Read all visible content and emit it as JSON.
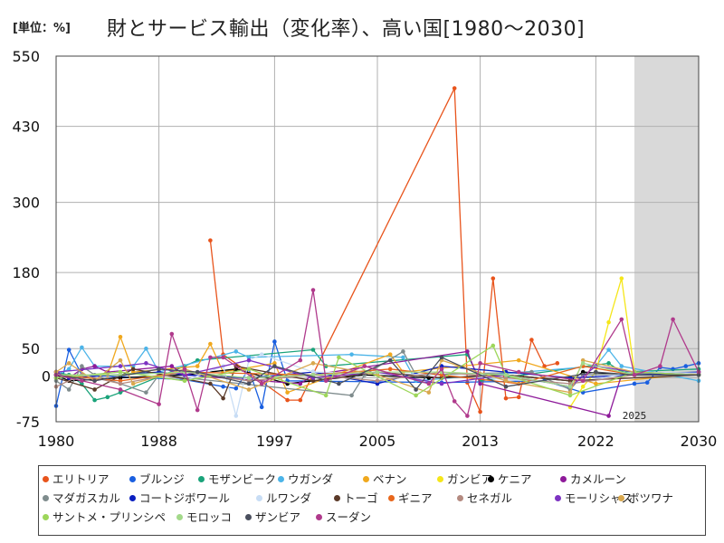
{
  "unit_label": "[単位：%]",
  "title": "財とサービス輸出（変化率）、高い国[1980～2030]",
  "chart_data": {
    "type": "line",
    "title": "財とサービス輸出（変化率）、高い国[1980～2030]",
    "xlabel": "",
    "ylabel": "",
    "xlim": [
      1980,
      2030
    ],
    "ylim": [
      -75,
      550
    ],
    "x_ticks": [
      1980,
      1988,
      1997,
      2005,
      2013,
      2022,
      2030
    ],
    "y_ticks": [
      550,
      430,
      300,
      180,
      50,
      0,
      -75
    ],
    "forecast_start": 2025,
    "forecast_label": "2025",
    "grid": true,
    "legend_position": "bottom",
    "series": [
      {
        "name": "エリトリア",
        "color": "#e8541c",
        "points": [
          [
            1992,
            235
          ],
          [
            1993,
            40
          ],
          [
            1998,
            -38
          ],
          [
            1999,
            -38
          ],
          [
            2011,
            495
          ],
          [
            2012,
            -8
          ],
          [
            2013,
            -58
          ],
          [
            2014,
            170
          ],
          [
            2015,
            -35
          ],
          [
            2016,
            -33
          ],
          [
            2017,
            65
          ],
          [
            2018,
            20
          ],
          [
            2019,
            25
          ]
        ]
      },
      {
        "name": "ブルンジ",
        "color": "#1a5fe0",
        "points": [
          [
            1980,
            -48
          ],
          [
            1981,
            48
          ],
          [
            1982,
            5
          ],
          [
            1990,
            -3
          ],
          [
            1993,
            -15
          ],
          [
            1994,
            -18
          ],
          [
            1995,
            15
          ],
          [
            1996,
            -50
          ],
          [
            1997,
            62
          ],
          [
            1998,
            -5
          ],
          [
            2010,
            -8
          ],
          [
            2018,
            -5
          ],
          [
            2021,
            -25
          ],
          [
            2025,
            -10
          ],
          [
            2026,
            -8
          ],
          [
            2027,
            18
          ],
          [
            2028,
            15
          ],
          [
            2029,
            20
          ],
          [
            2030,
            25
          ]
        ]
      },
      {
        "name": "モザンビーク",
        "color": "#1aa37a",
        "points": [
          [
            1980,
            10
          ],
          [
            1981,
            5
          ],
          [
            1982,
            -10
          ],
          [
            1983,
            -38
          ],
          [
            1984,
            -33
          ],
          [
            1985,
            -25
          ],
          [
            1990,
            20
          ],
          [
            1991,
            30
          ],
          [
            2000,
            48
          ],
          [
            2001,
            20
          ],
          [
            2012,
            40
          ],
          [
            2013,
            -5
          ],
          [
            2023,
            25
          ],
          [
            2024,
            10
          ],
          [
            2030,
            15
          ]
        ]
      },
      {
        "name": "ウガンダ",
        "color": "#4cb4e8",
        "points": [
          [
            1980,
            5
          ],
          [
            1981,
            15
          ],
          [
            1982,
            52
          ],
          [
            1983,
            20
          ],
          [
            1986,
            20
          ],
          [
            1987,
            50
          ],
          [
            1988,
            10
          ],
          [
            1994,
            45
          ],
          [
            1995,
            35
          ],
          [
            2003,
            40
          ],
          [
            2007,
            35
          ],
          [
            2008,
            -5
          ],
          [
            2022,
            20
          ],
          [
            2023,
            48
          ],
          [
            2024,
            20
          ],
          [
            2030,
            -5
          ]
        ]
      },
      {
        "name": "ベナン",
        "color": "#f0a81e",
        "points": [
          [
            1980,
            5
          ],
          [
            1984,
            5
          ],
          [
            1985,
            70
          ],
          [
            1986,
            10
          ],
          [
            1991,
            20
          ],
          [
            1992,
            58
          ],
          [
            1993,
            10
          ],
          [
            1997,
            25
          ],
          [
            1998,
            -25
          ],
          [
            2006,
            40
          ],
          [
            2007,
            10
          ],
          [
            2016,
            30
          ],
          [
            2022,
            -10
          ],
          [
            2030,
            8
          ]
        ]
      },
      {
        "name": "ガンビア",
        "color": "#f5e61a",
        "points": [
          [
            2020,
            -50
          ],
          [
            2021,
            -15
          ],
          [
            2022,
            10
          ],
          [
            2023,
            95
          ],
          [
            2024,
            170
          ],
          [
            2025,
            10
          ],
          [
            2030,
            5
          ]
        ]
      },
      {
        "name": "ケニア",
        "color": "#000000",
        "points": [
          [
            1980,
            5
          ],
          [
            1981,
            -5
          ],
          [
            1985,
            0
          ],
          [
            1990,
            5
          ],
          [
            1994,
            15
          ],
          [
            1998,
            -10
          ],
          [
            2004,
            5
          ],
          [
            2009,
            0
          ],
          [
            2015,
            5
          ],
          [
            2020,
            -5
          ],
          [
            2021,
            10
          ],
          [
            2025,
            5
          ],
          [
            2030,
            5
          ]
        ]
      },
      {
        "name": "カメルーン",
        "color": "#8e1a9a",
        "points": [
          [
            1980,
            10
          ],
          [
            1981,
            0
          ],
          [
            1982,
            15
          ],
          [
            1983,
            20
          ],
          [
            1984,
            10
          ],
          [
            1989,
            20
          ],
          [
            1990,
            5
          ],
          [
            1999,
            -10
          ],
          [
            2000,
            5
          ],
          [
            2012,
            45
          ],
          [
            2013,
            -10
          ],
          [
            2023,
            -65
          ],
          [
            2024,
            5
          ],
          [
            2030,
            5
          ]
        ]
      },
      {
        "name": "マダガスカル",
        "color": "#7f8c8d",
        "points": [
          [
            1980,
            -5
          ],
          [
            1981,
            -20
          ],
          [
            1982,
            20
          ],
          [
            1983,
            5
          ],
          [
            1987,
            -25
          ],
          [
            1988,
            5
          ],
          [
            2003,
            -30
          ],
          [
            2004,
            5
          ],
          [
            2007,
            45
          ],
          [
            2008,
            5
          ],
          [
            2017,
            10
          ],
          [
            2020,
            -20
          ],
          [
            2021,
            5
          ],
          [
            2030,
            10
          ]
        ]
      },
      {
        "name": "コートジボワール",
        "color": "#0a1fc0",
        "points": [
          [
            1980,
            5
          ],
          [
            1981,
            0
          ],
          [
            1988,
            10
          ],
          [
            1990,
            5
          ],
          [
            1995,
            0
          ],
          [
            2000,
            10
          ],
          [
            2005,
            -10
          ],
          [
            2010,
            20
          ],
          [
            2015,
            10
          ],
          [
            2020,
            0
          ],
          [
            2025,
            5
          ],
          [
            2030,
            10
          ]
        ]
      },
      {
        "name": "ルワンダ",
        "color": "#c8ddf5",
        "points": [
          [
            1980,
            0
          ],
          [
            1985,
            10
          ],
          [
            1990,
            -5
          ],
          [
            1993,
            20
          ],
          [
            1994,
            -65
          ],
          [
            1995,
            30
          ],
          [
            1996,
            40
          ],
          [
            2000,
            10
          ],
          [
            2010,
            5
          ],
          [
            2020,
            -10
          ],
          [
            2025,
            10
          ],
          [
            2030,
            8
          ]
        ]
      },
      {
        "name": "トーゴ",
        "color": "#5b3a29",
        "points": [
          [
            1980,
            0
          ],
          [
            1983,
            -20
          ],
          [
            1986,
            15
          ],
          [
            1992,
            -10
          ],
          [
            1993,
            -35
          ],
          [
            1994,
            20
          ],
          [
            2000,
            -5
          ],
          [
            2005,
            10
          ],
          [
            2010,
            0
          ],
          [
            2015,
            5
          ],
          [
            2020,
            -5
          ],
          [
            2030,
            5
          ]
        ]
      },
      {
        "name": "ギニア",
        "color": "#e8671c",
        "points": [
          [
            1980,
            5
          ],
          [
            1985,
            -5
          ],
          [
            1990,
            10
          ],
          [
            2000,
            5
          ],
          [
            2006,
            15
          ],
          [
            2010,
            5
          ],
          [
            2016,
            -10
          ],
          [
            2021,
            20
          ],
          [
            2025,
            5
          ],
          [
            2030,
            5
          ]
        ]
      },
      {
        "name": "セネガル",
        "color": "#b48a80",
        "points": [
          [
            1980,
            -15
          ],
          [
            1982,
            5
          ],
          [
            1985,
            -10
          ],
          [
            1990,
            10
          ],
          [
            1995,
            -5
          ],
          [
            2000,
            5
          ],
          [
            2005,
            -5
          ],
          [
            2010,
            10
          ],
          [
            2015,
            0
          ],
          [
            2020,
            -10
          ],
          [
            2025,
            5
          ],
          [
            2030,
            5
          ]
        ]
      },
      {
        "name": "モーリシャス",
        "color": "#7d33c2",
        "points": [
          [
            1980,
            10
          ],
          [
            1985,
            20
          ],
          [
            1987,
            25
          ],
          [
            1990,
            5
          ],
          [
            1995,
            30
          ],
          [
            2000,
            0
          ],
          [
            2005,
            10
          ],
          [
            2010,
            -10
          ],
          [
            2015,
            5
          ],
          [
            2020,
            -15
          ],
          [
            2022,
            20
          ],
          [
            2025,
            10
          ],
          [
            2030,
            5
          ]
        ]
      },
      {
        "name": "ボツワナ",
        "color": "#d9a84e",
        "points": [
          [
            1980,
            10
          ],
          [
            1981,
            25
          ],
          [
            1983,
            -5
          ],
          [
            1985,
            30
          ],
          [
            1986,
            -10
          ],
          [
            1990,
            15
          ],
          [
            1995,
            -20
          ],
          [
            2000,
            25
          ],
          [
            2005,
            5
          ],
          [
            2009,
            -25
          ],
          [
            2010,
            30
          ],
          [
            2015,
            -5
          ],
          [
            2020,
            -25
          ],
          [
            2021,
            30
          ],
          [
            2025,
            10
          ],
          [
            2030,
            5
          ]
        ]
      },
      {
        "name": "サントメ・プリンシペ",
        "color": "#9dd65a",
        "points": [
          [
            1980,
            0
          ],
          [
            1985,
            10
          ],
          [
            1990,
            -5
          ],
          [
            1995,
            15
          ],
          [
            2001,
            -30
          ],
          [
            2002,
            35
          ],
          [
            2008,
            -30
          ],
          [
            2014,
            55
          ],
          [
            2015,
            5
          ],
          [
            2020,
            -30
          ],
          [
            2025,
            10
          ],
          [
            2030,
            5
          ]
        ]
      },
      {
        "name": "モロッコ",
        "color": "#a3d98a",
        "points": [
          [
            1980,
            5
          ],
          [
            1985,
            5
          ],
          [
            1990,
            10
          ],
          [
            1995,
            0
          ],
          [
            2000,
            5
          ],
          [
            2005,
            10
          ],
          [
            2010,
            10
          ],
          [
            2015,
            5
          ],
          [
            2020,
            -15
          ],
          [
            2021,
            25
          ],
          [
            2025,
            5
          ],
          [
            2030,
            5
          ]
        ]
      },
      {
        "name": "ザンビア",
        "color": "#4a4f5e",
        "points": [
          [
            1980,
            5
          ],
          [
            1983,
            -5
          ],
          [
            1988,
            15
          ],
          [
            1991,
            10
          ],
          [
            1995,
            -10
          ],
          [
            1997,
            20
          ],
          [
            2002,
            -10
          ],
          [
            2006,
            30
          ],
          [
            2008,
            -20
          ],
          [
            2010,
            35
          ],
          [
            2015,
            -15
          ],
          [
            2022,
            10
          ],
          [
            2025,
            5
          ],
          [
            2030,
            5
          ]
        ]
      },
      {
        "name": "スーダン",
        "color": "#b03a8c",
        "points": [
          [
            1980,
            5
          ],
          [
            1982,
            -5
          ],
          [
            1985,
            -20
          ],
          [
            1988,
            -45
          ],
          [
            1989,
            75
          ],
          [
            1990,
            15
          ],
          [
            1991,
            -55
          ],
          [
            1992,
            35
          ],
          [
            1993,
            35
          ],
          [
            1996,
            -10
          ],
          [
            1999,
            30
          ],
          [
            2000,
            150
          ],
          [
            2001,
            -5
          ],
          [
            2004,
            20
          ],
          [
            2009,
            -10
          ],
          [
            2010,
            15
          ],
          [
            2011,
            -40
          ],
          [
            2012,
            -65
          ],
          [
            2013,
            25
          ],
          [
            2016,
            10
          ],
          [
            2021,
            -5
          ],
          [
            2024,
            100
          ],
          [
            2025,
            5
          ],
          [
            2027,
            20
          ],
          [
            2028,
            100
          ],
          [
            2030,
            10
          ]
        ]
      }
    ]
  }
}
